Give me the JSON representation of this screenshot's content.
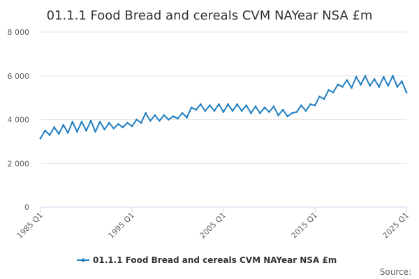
{
  "chart_data": {
    "type": "line",
    "title": "01.1.1 Food Bread and cereals CVM NAYear NSA £m",
    "xlabel": "",
    "ylabel": "",
    "ylim": [
      0,
      8000
    ],
    "yticks": [
      0,
      2000,
      4000,
      6000,
      8000
    ],
    "ytick_labels": [
      "0",
      "2 000",
      "4 000",
      "6 000",
      "8 000"
    ],
    "xlim": [
      1985,
      2025
    ],
    "xticks": [
      1985,
      1995,
      2005,
      2015,
      2025
    ],
    "xtick_labels": [
      "1985 Q1",
      "1995 Q1",
      "2005 Q1",
      "2015 Q1",
      "2025 Q1"
    ],
    "grid": true,
    "legend_position": "bottom",
    "color": "#1f7ec1",
    "series": [
      {
        "name": "01.1.1 Food Bread and cereals CVM NAYear NSA £m",
        "x": [
          1985,
          1985.5,
          1986,
          1986.5,
          1987,
          1987.5,
          1988,
          1988.5,
          1989,
          1989.5,
          1990,
          1990.5,
          1991,
          1991.5,
          1992,
          1992.5,
          1993,
          1993.5,
          1994,
          1994.5,
          1995,
          1995.5,
          1996,
          1996.5,
          1997,
          1997.5,
          1998,
          1998.5,
          1999,
          1999.5,
          2000,
          2000.5,
          2001,
          2001.5,
          2002,
          2002.5,
          2003,
          2003.5,
          2004,
          2004.5,
          2005,
          2005.5,
          2006,
          2006.5,
          2007,
          2007.5,
          2008,
          2008.5,
          2009,
          2009.5,
          2010,
          2010.5,
          2011,
          2011.5,
          2012,
          2012.5,
          2013,
          2013.5,
          2014,
          2014.5,
          2015,
          2015.5,
          2016,
          2016.5,
          2017,
          2017.5,
          2018,
          2018.5,
          2019,
          2019.5,
          2020,
          2020.5,
          2021,
          2021.5,
          2022,
          2022.5,
          2023,
          2023.5,
          2024,
          2024.5,
          2025
        ],
        "values": [
          3150,
          3500,
          3300,
          3650,
          3350,
          3750,
          3400,
          3900,
          3450,
          3900,
          3500,
          3950,
          3450,
          3900,
          3550,
          3850,
          3600,
          3800,
          3650,
          3850,
          3700,
          4000,
          3850,
          4300,
          3950,
          4200,
          3950,
          4200,
          4000,
          4150,
          4050,
          4300,
          4100,
          4550,
          4450,
          4700,
          4400,
          4650,
          4400,
          4700,
          4350,
          4700,
          4400,
          4700,
          4400,
          4650,
          4300,
          4600,
          4300,
          4550,
          4350,
          4600,
          4200,
          4450,
          4150,
          4300,
          4350,
          4650,
          4400,
          4700,
          4650,
          5050,
          4950,
          5350,
          5250,
          5600,
          5500,
          5800,
          5450,
          5950,
          5600,
          6000,
          5550,
          5850,
          5500,
          5950,
          5550,
          6000,
          5500,
          5750,
          5250
        ]
      }
    ]
  },
  "legend": {
    "label": "01.1.1 Food Bread and cereals CVM NAYear NSA £m"
  },
  "source": {
    "label": "Source:"
  }
}
